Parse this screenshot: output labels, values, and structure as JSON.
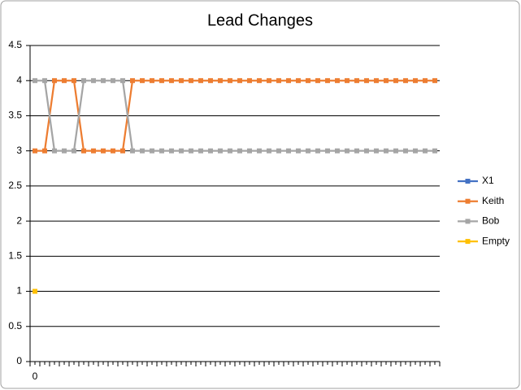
{
  "chart_data": {
    "type": "line",
    "title": "Lead Changes",
    "categories": [
      "0",
      null,
      null,
      null,
      null,
      null,
      null,
      null,
      null,
      null,
      null,
      null,
      null,
      null,
      null,
      null,
      null,
      null,
      null,
      null,
      null,
      null,
      null,
      null,
      null,
      null,
      null,
      null,
      null,
      null,
      null,
      null,
      null,
      null,
      null,
      null,
      null,
      null,
      null,
      null,
      null,
      null
    ],
    "series": [
      {
        "name": "X1",
        "color": "#4472c4",
        "values": [
          null,
          null,
          null,
          null,
          null,
          null,
          null,
          null,
          null,
          null,
          null,
          null,
          null,
          null,
          null,
          null,
          null,
          null,
          null,
          null,
          null,
          null,
          null,
          null,
          null,
          null,
          null,
          null,
          null,
          null,
          null,
          null,
          null,
          null,
          null,
          null,
          null,
          null,
          null,
          null,
          null,
          null
        ]
      },
      {
        "name": "Keith",
        "color": "#ed7d31",
        "values": [
          3,
          3,
          4,
          4,
          4,
          3,
          3,
          3,
          3,
          3,
          4,
          4,
          4,
          4,
          4,
          4,
          4,
          4,
          4,
          4,
          4,
          4,
          4,
          4,
          4,
          4,
          4,
          4,
          4,
          4,
          4,
          4,
          4,
          4,
          4,
          4,
          4,
          4,
          4,
          4,
          4,
          4
        ]
      },
      {
        "name": "Bob",
        "color": "#a5a5a5",
        "values": [
          4,
          4,
          3,
          3,
          3,
          4,
          4,
          4,
          4,
          4,
          3,
          3,
          3,
          3,
          3,
          3,
          3,
          3,
          3,
          3,
          3,
          3,
          3,
          3,
          3,
          3,
          3,
          3,
          3,
          3,
          3,
          3,
          3,
          3,
          3,
          3,
          3,
          3,
          3,
          3,
          3,
          3
        ]
      },
      {
        "name": "Empty",
        "color": "#ffc000",
        "values": [
          1,
          null,
          null,
          null,
          null,
          null,
          null,
          null,
          null,
          null,
          null,
          null,
          null,
          null,
          null,
          null,
          null,
          null,
          null,
          null,
          null,
          null,
          null,
          null,
          null,
          null,
          null,
          null,
          null,
          null,
          null,
          null,
          null,
          null,
          null,
          null,
          null,
          null,
          null,
          null,
          null,
          null
        ]
      }
    ],
    "ylim": [
      0,
      4.5
    ],
    "yticks": [
      0,
      0.5,
      1,
      1.5,
      2,
      2.5,
      3,
      3.5,
      4,
      4.5
    ],
    "grid": true,
    "legend": "right"
  }
}
